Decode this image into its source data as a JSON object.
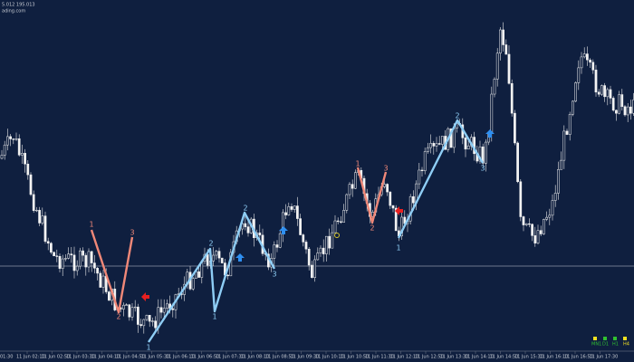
{
  "header": {
    "line1": "5.012 195.013",
    "line2": "ading.com"
  },
  "time_axis": {
    "first": "01:30",
    "labels": [
      "11 Jun 02:10",
      "11 Jun 02:50",
      "11 Jun 03:30",
      "11 Jun 04:10",
      "11 Jun 04:50",
      "11 Jun 05:30",
      "11 Jun 06:10",
      "11 Jun 06:50",
      "11 Jun 07:30",
      "11 Jun 08:10",
      "11 Jun 08:50",
      "11 Jun 09:30",
      "11 Jun 10:10",
      "11 Jun 10:50",
      "11 Jun 11:30",
      "11 Jun 12:10",
      "11 Jun 12:50",
      "11 Jun 13:30",
      "11 Jun 14:10",
      "11 Jun 14:50",
      "11 Jun 15:30",
      "11 Jun 16:10",
      "11 Jun 16:50",
      "11 Jun 17:30"
    ]
  },
  "waves": [
    {
      "labels": [
        "1",
        "2",
        "3"
      ]
    },
    {
      "labels": [
        "1",
        "2",
        "1",
        "2",
        "3"
      ]
    },
    {
      "labels": [
        "1",
        "2",
        "3"
      ]
    },
    {
      "labels": [
        "1",
        "2",
        "3"
      ]
    }
  ],
  "legend": {
    "labels": [
      "MN1",
      "D1",
      "H1",
      "H4"
    ]
  }
}
